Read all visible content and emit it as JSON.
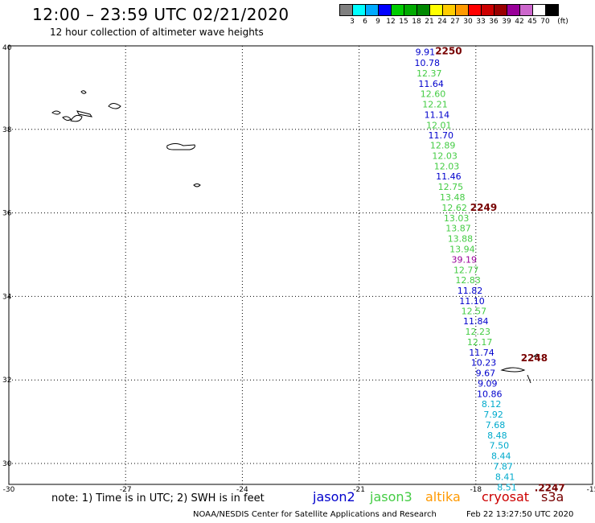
{
  "header": {
    "title": "12:00 – 23:59 UTC 02/21/2020",
    "subtitle": "12 hour collection of altimeter wave heights"
  },
  "colors": {
    "jason2": "#0000cc",
    "jason3": "#44cc44",
    "altika": "#ff9900",
    "cryosat": "#cc0000",
    "s3a": "#770000",
    "high": "#990099",
    "cyan": "#00aacc",
    "grid": "#000000"
  },
  "legend_scale": {
    "unit_label": "(ft)",
    "colors": [
      "#808080",
      "#00ffff",
      "#00aaff",
      "#0000ff",
      "#00cc00",
      "#00aa00",
      "#008800",
      "#ffff00",
      "#ffcc00",
      "#ff9900",
      "#ff0000",
      "#cc0000",
      "#990000",
      "#990099",
      "#cc66cc",
      "#ffffff",
      "#000000"
    ],
    "labels": [
      "3",
      "6",
      "9",
      "12",
      "15",
      "18",
      "21",
      "24",
      "27",
      "30",
      "33",
      "36",
      "39",
      "42",
      "45",
      "70"
    ]
  },
  "chart_data": {
    "type": "scatter",
    "x_axis": {
      "ticks": [
        "-30",
        "-27",
        "-24",
        "-21",
        "-18",
        "-15"
      ],
      "range": [
        -30,
        -15
      ]
    },
    "y_axis": {
      "ticks": [
        "40",
        "38",
        "36",
        "34",
        "32",
        "30"
      ],
      "range": [
        29.5,
        40
      ]
    },
    "grid": true,
    "points": [
      {
        "lon": -19.3,
        "lat": 39.78,
        "value": "9.91",
        "sat": "jason2"
      },
      {
        "lon": -19.25,
        "lat": 39.52,
        "value": "10.78",
        "sat": "jason2"
      },
      {
        "lon": -19.2,
        "lat": 39.27,
        "value": "12.37",
        "sat": "jason3"
      },
      {
        "lon": -19.15,
        "lat": 39.02,
        "value": "11.64",
        "sat": "jason2"
      },
      {
        "lon": -19.1,
        "lat": 38.78,
        "value": "12.60",
        "sat": "jason3"
      },
      {
        "lon": -19.05,
        "lat": 38.53,
        "value": "12.21",
        "sat": "jason3"
      },
      {
        "lon": -19.0,
        "lat": 38.28,
        "value": "11.14",
        "sat": "jason2"
      },
      {
        "lon": -18.95,
        "lat": 38.03,
        "value": "12.01",
        "sat": "jason3"
      },
      {
        "lon": -18.9,
        "lat": 37.78,
        "value": "11.70",
        "sat": "jason2"
      },
      {
        "lon": -18.85,
        "lat": 37.54,
        "value": "12.89",
        "sat": "jason3"
      },
      {
        "lon": -18.8,
        "lat": 37.29,
        "value": "12.03",
        "sat": "jason3"
      },
      {
        "lon": -18.75,
        "lat": 37.04,
        "value": "12.03",
        "sat": "jason3"
      },
      {
        "lon": -18.7,
        "lat": 36.8,
        "value": "11.46",
        "sat": "jason2"
      },
      {
        "lon": -18.65,
        "lat": 36.55,
        "value": "12.75",
        "sat": "jason3"
      },
      {
        "lon": -18.6,
        "lat": 36.3,
        "value": "13.48",
        "sat": "jason3"
      },
      {
        "lon": -18.55,
        "lat": 36.05,
        "value": "12.62",
        "sat": "jason3"
      },
      {
        "lon": -18.5,
        "lat": 35.8,
        "value": "13.03",
        "sat": "jason3"
      },
      {
        "lon": -18.45,
        "lat": 35.56,
        "value": "13.87",
        "sat": "jason3"
      },
      {
        "lon": -18.4,
        "lat": 35.31,
        "value": "13.88",
        "sat": "jason3"
      },
      {
        "lon": -18.35,
        "lat": 35.06,
        "value": "13.94",
        "sat": "jason3"
      },
      {
        "lon": -18.3,
        "lat": 34.81,
        "value": "39.19",
        "sat": "high"
      },
      {
        "lon": -18.25,
        "lat": 34.56,
        "value": "12.77",
        "sat": "jason3"
      },
      {
        "lon": -18.2,
        "lat": 34.32,
        "value": "12.83",
        "sat": "jason3"
      },
      {
        "lon": -18.15,
        "lat": 34.07,
        "value": "11.82",
        "sat": "jason2"
      },
      {
        "lon": -18.1,
        "lat": 33.82,
        "value": "11.10",
        "sat": "jason2"
      },
      {
        "lon": -18.05,
        "lat": 33.57,
        "value": "12.57",
        "sat": "jason3"
      },
      {
        "lon": -18.0,
        "lat": 33.33,
        "value": "11.84",
        "sat": "jason2"
      },
      {
        "lon": -17.95,
        "lat": 33.08,
        "value": "12.23",
        "sat": "jason3"
      },
      {
        "lon": -17.9,
        "lat": 32.83,
        "value": "12.17",
        "sat": "jason3"
      },
      {
        "lon": -17.85,
        "lat": 32.58,
        "value": "11.74",
        "sat": "jason2"
      },
      {
        "lon": -17.8,
        "lat": 32.34,
        "value": "10.23",
        "sat": "jason2"
      },
      {
        "lon": -17.75,
        "lat": 32.09,
        "value": "9.67",
        "sat": "jason2"
      },
      {
        "lon": -17.7,
        "lat": 31.84,
        "value": "9.09",
        "sat": "jason2"
      },
      {
        "lon": -17.65,
        "lat": 31.59,
        "value": "10.86",
        "sat": "jason2"
      },
      {
        "lon": -17.6,
        "lat": 31.35,
        "value": "8.12",
        "sat": "cyan"
      },
      {
        "lon": -17.55,
        "lat": 31.1,
        "value": "7.92",
        "sat": "cyan"
      },
      {
        "lon": -17.5,
        "lat": 30.85,
        "value": "7.68",
        "sat": "cyan"
      },
      {
        "lon": -17.45,
        "lat": 30.6,
        "value": "8.48",
        "sat": "cyan"
      },
      {
        "lon": -17.4,
        "lat": 30.36,
        "value": "7.50",
        "sat": "cyan"
      },
      {
        "lon": -17.35,
        "lat": 30.11,
        "value": "8.44",
        "sat": "cyan"
      },
      {
        "lon": -17.3,
        "lat": 29.86,
        "value": "7.87",
        "sat": "cyan"
      },
      {
        "lon": -17.25,
        "lat": 29.61,
        "value": "8.41",
        "sat": "cyan"
      },
      {
        "lon": -17.2,
        "lat": 29.36,
        "value": "8.51",
        "sat": "cyan"
      }
    ],
    "time_labels": [
      {
        "lon": -18.7,
        "lat": 39.8,
        "text": "2250"
      },
      {
        "lon": -17.8,
        "lat": 36.05,
        "text": "2249"
      },
      {
        "lon": -16.5,
        "lat": 32.45,
        "text": "2248"
      },
      {
        "lon": -16.1,
        "lat": 29.34,
        "text": ".2247"
      }
    ]
  },
  "legend": {
    "note": "note: 1) Time is in UTC; 2) SWH is in feet",
    "jason2": "jason2",
    "jason3": "jason3",
    "altika": "altika",
    "cryosat": "cryosat",
    "s3a": "s3a"
  },
  "footer": {
    "center": "NOAA/NESDIS Center for Satellite Applications and Research",
    "timestamp": "Feb 22 13:27:50 UTC 2020"
  }
}
